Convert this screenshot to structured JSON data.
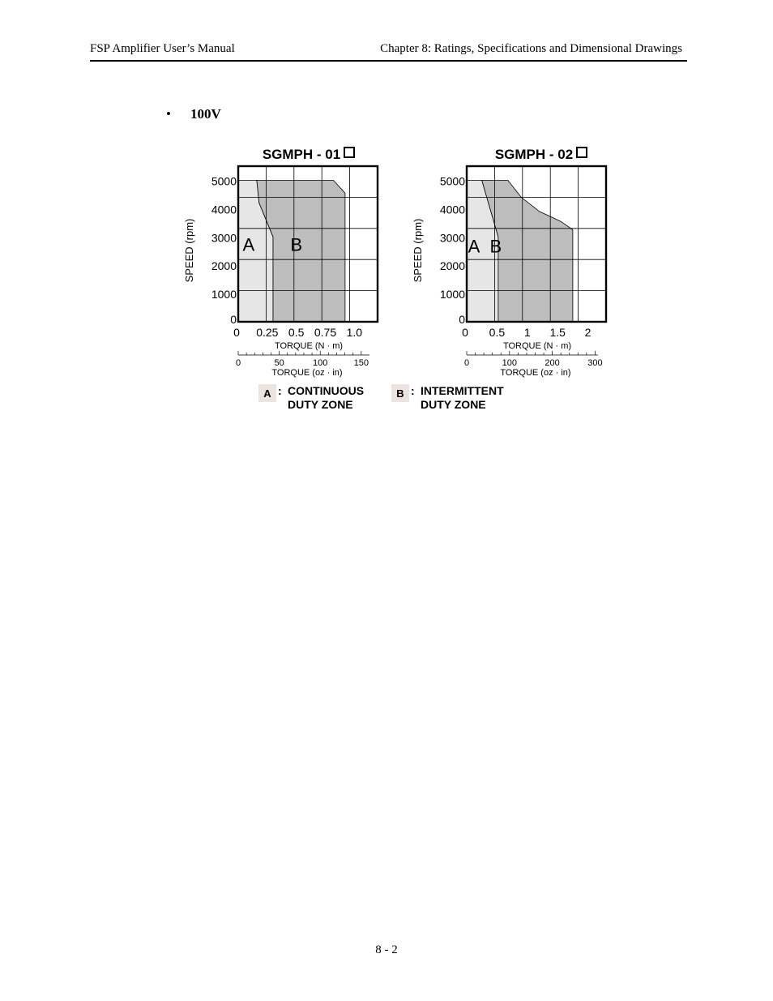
{
  "header": {
    "left": "FSP Amplifier User’s Manual",
    "right": "Chapter 8:  Ratings, Specifications and Dimensional Drawings"
  },
  "section": {
    "bullet": "•",
    "title": "100V"
  },
  "chart_data": [
    {
      "type": "area",
      "title": "SGMPH - 01",
      "title_suffix_icon": "square-outline-icon",
      "ylabel": "SPEED (rpm)",
      "xlabel": "TORQUE (N · m)",
      "xlabel2": "TORQUE (oz · in)",
      "ylim": [
        0,
        5500
      ],
      "xlim": [
        0,
        1.2
      ],
      "y_ticks": [
        0,
        1000,
        2000,
        3000,
        4000,
        5000
      ],
      "y_tick_labels": [
        "0",
        "1000",
        "2000",
        "3000",
        "4000",
        "5000"
      ],
      "x_ticks": [
        0,
        0.25,
        0.5,
        0.75,
        1.0
      ],
      "x_tick_labels": [
        "0",
        "0.25",
        "0.5",
        "0.75",
        "1.0"
      ],
      "x2_ticks": [
        0,
        50,
        100,
        150
      ],
      "x2_tick_labels": [
        "0",
        "50",
        "100",
        "150"
      ],
      "zones": [
        {
          "label": "A",
          "name": "CONTINUOUS DUTY ZONE",
          "points": [
            [
              0,
              0
            ],
            [
              0,
              5000
            ],
            [
              0.16,
              5000
            ],
            [
              0.18,
              4200
            ],
            [
              0.3,
              3000
            ],
            [
              0.3,
              0
            ]
          ]
        },
        {
          "label": "B",
          "name": "INTERMITTENT DUTY ZONE",
          "points": [
            [
              0.3,
              0
            ],
            [
              0.3,
              3000
            ],
            [
              0.18,
              4200
            ],
            [
              0.16,
              5000
            ],
            [
              0.82,
              5000
            ],
            [
              0.92,
              4550
            ],
            [
              0.92,
              0
            ]
          ]
        }
      ]
    },
    {
      "type": "area",
      "title": "SGMPH - 02",
      "title_suffix_icon": "square-outline-icon",
      "ylabel": "SPEED (rpm)",
      "xlabel": "TORQUE (N · m)",
      "xlabel2": "TORQUE (oz · in)",
      "ylim": [
        0,
        5500
      ],
      "xlim": [
        0,
        2.3
      ],
      "y_ticks": [
        0,
        1000,
        2000,
        3000,
        4000,
        5000
      ],
      "y_tick_labels": [
        "0",
        "1000",
        "2000",
        "3000",
        "4000",
        "5000"
      ],
      "x_ticks": [
        0,
        0.5,
        1,
        1.5,
        2
      ],
      "x_tick_labels": [
        "0",
        "0.5",
        "1",
        "1.5",
        "2"
      ],
      "x2_ticks": [
        0,
        100,
        200,
        300
      ],
      "x2_tick_labels": [
        "0",
        "100",
        "200",
        "300"
      ],
      "zones": [
        {
          "label": "A",
          "name": "CONTINUOUS DUTY ZONE",
          "points": [
            [
              0,
              0
            ],
            [
              0,
              5000
            ],
            [
              0.25,
              5000
            ],
            [
              0.52,
              3000
            ],
            [
              0.52,
              0
            ]
          ]
        },
        {
          "label": "B",
          "name": "INTERMITTENT DUTY ZONE",
          "points": [
            [
              0.52,
              0
            ],
            [
              0.52,
              3000
            ],
            [
              0.25,
              5000
            ],
            [
              0.68,
              5000
            ],
            [
              0.9,
              4400
            ],
            [
              1.2,
              3900
            ],
            [
              1.55,
              3550
            ],
            [
              1.75,
              3250
            ],
            [
              1.75,
              0
            ]
          ]
        }
      ]
    }
  ],
  "legend": [
    {
      "key": "A",
      "sep": ":",
      "line1": "CONTINUOUS",
      "line2": "DUTY ZONE"
    },
    {
      "key": "B",
      "sep": ":",
      "line1": "INTERMITTENT",
      "line2": "DUTY ZONE"
    }
  ],
  "colors": {
    "zone_a": "#e6e6e6",
    "zone_b": "#bdbdbd",
    "legend_key_bg": "#ece4e0",
    "frame": "#000000"
  },
  "footer": {
    "page_number": "8 - 2"
  }
}
